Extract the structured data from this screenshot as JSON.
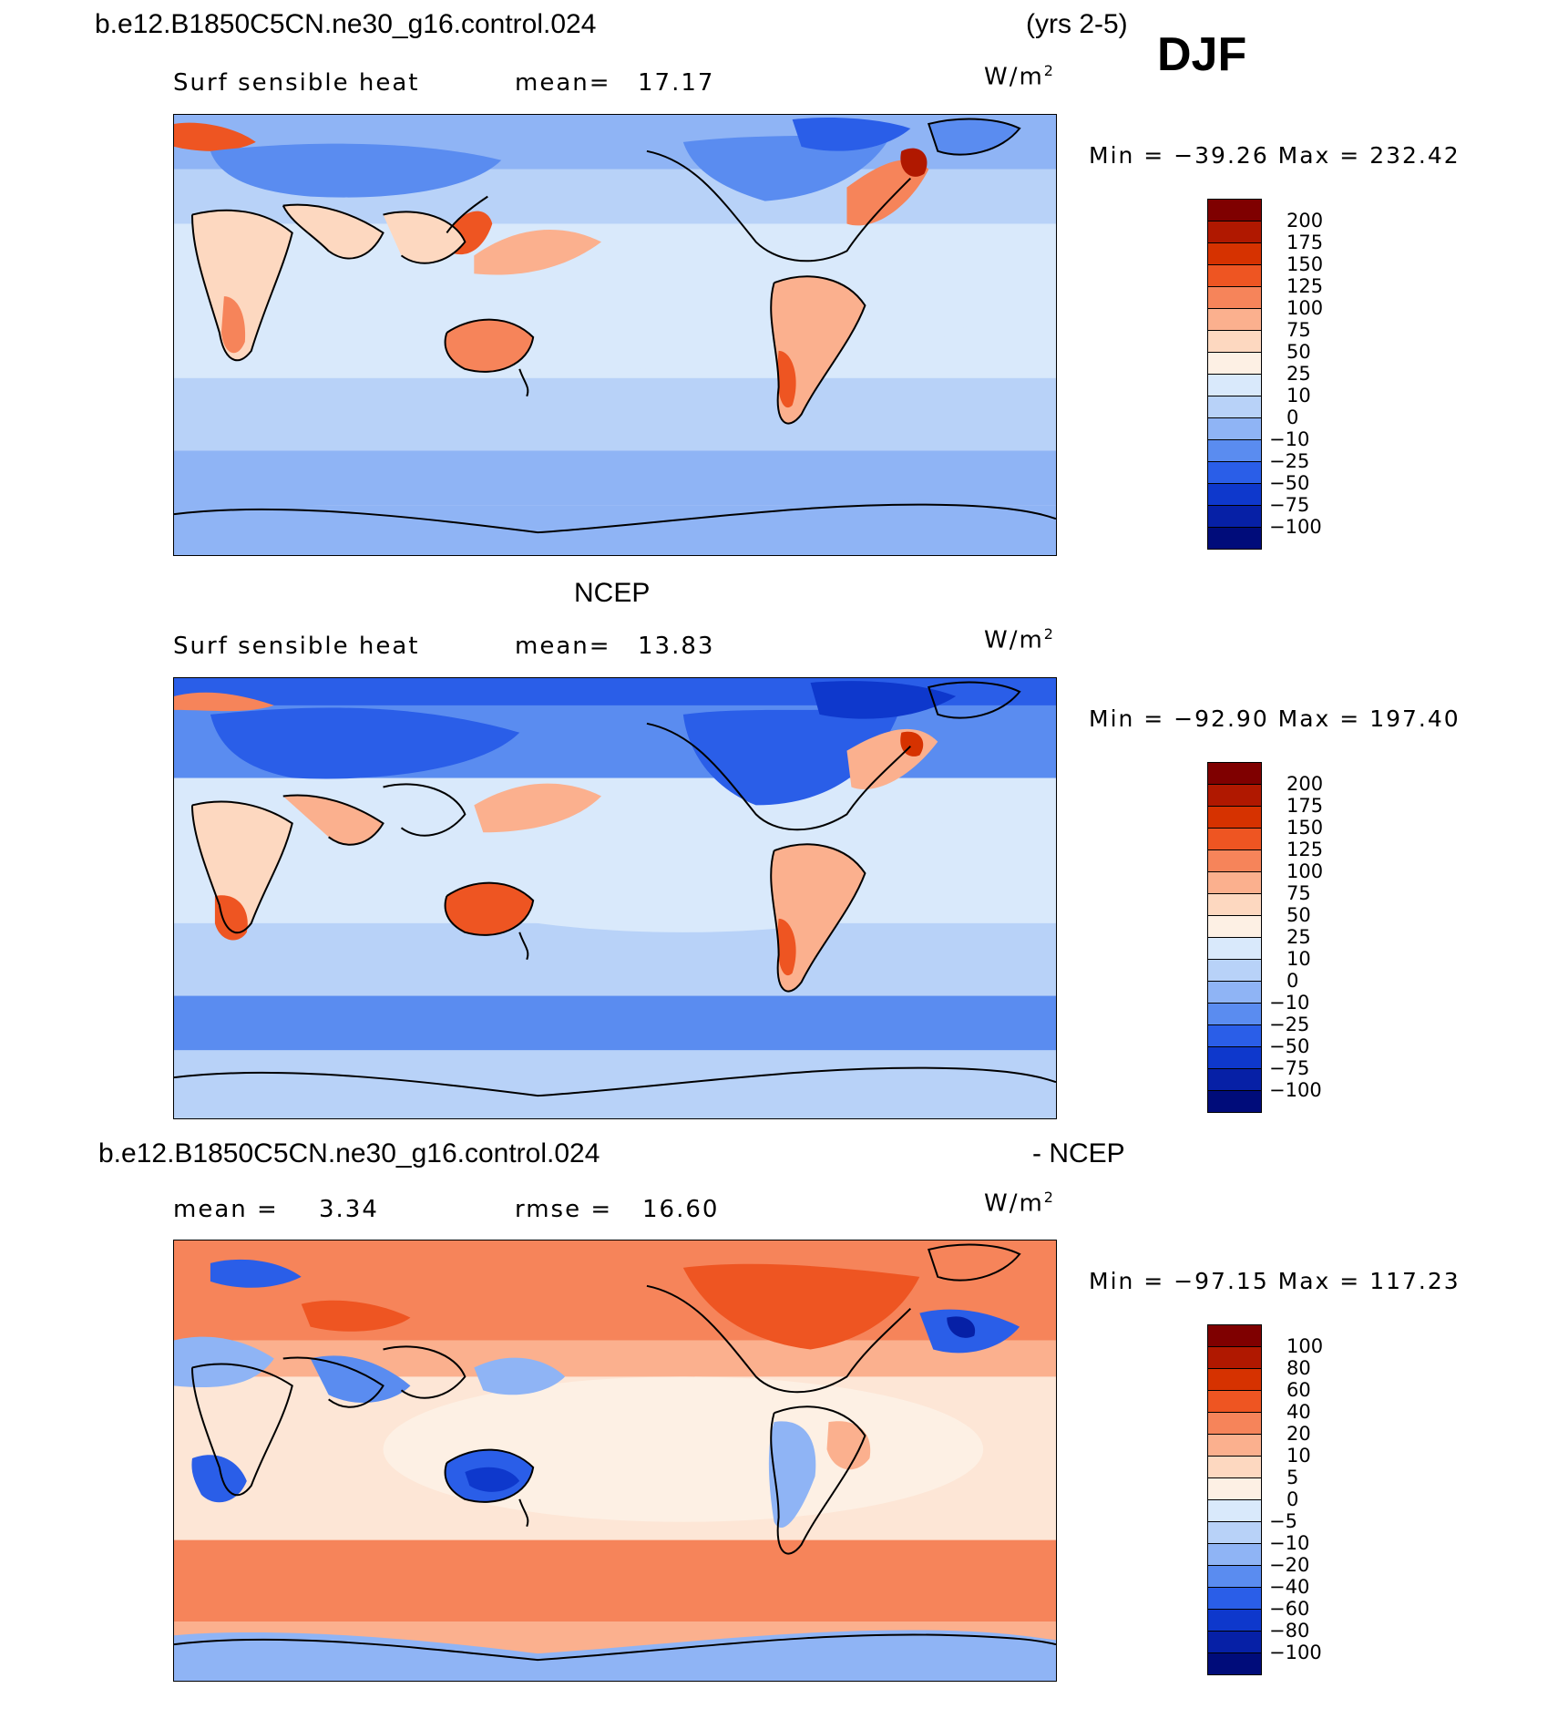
{
  "figure": {
    "case_title": "b.e12.B1850C5CN.ne30_g16.control.024",
    "years": "(yrs 2-5)",
    "season": "DJF"
  },
  "panels": [
    {
      "id": "model",
      "header": "",
      "left_label": "Surf sensible heat",
      "mean_label": "mean=",
      "mean_value": "17.17",
      "units_base": "W/m",
      "units_exp": "2",
      "minmax": "Min = −39.26 Max = 232.42",
      "colorbar_levels": [
        "200",
        "175",
        "150",
        "125",
        "100",
        "75",
        "50",
        "25",
        "10",
        "0",
        "−10",
        "−25",
        "−50",
        "−75",
        "−100"
      ]
    },
    {
      "id": "ncep",
      "header": "NCEP",
      "left_label": "Surf sensible heat",
      "mean_label": "mean=",
      "mean_value": "13.83",
      "units_base": "W/m",
      "units_exp": "2",
      "minmax": "Min = −92.90 Max = 197.40",
      "colorbar_levels": [
        "200",
        "175",
        "150",
        "125",
        "100",
        "75",
        "50",
        "25",
        "10",
        "0",
        "−10",
        "−25",
        "−50",
        "−75",
        "−100"
      ]
    },
    {
      "id": "diff",
      "header_left": "b.e12.B1850C5CN.ne30_g16.control.024",
      "header_right": "- NCEP",
      "left_label": "mean =",
      "left_value": "3.34",
      "mean_label": "rmse =",
      "mean_value": "16.60",
      "units_base": "W/m",
      "units_exp": "2",
      "minmax": "Min = −97.15 Max = 117.23",
      "colorbar_levels": [
        "100",
        "80",
        "60",
        "40",
        "20",
        "10",
        "5",
        "0",
        "−5",
        "−10",
        "−20",
        "−40",
        "−60",
        "−80",
        "−100"
      ]
    }
  ],
  "palette": [
    "#7f0000",
    "#b01800",
    "#d63200",
    "#ee5522",
    "#f6845a",
    "#fbb08e",
    "#fdd8c0",
    "#fdf0e4",
    "#d9e9fb",
    "#b8d2f8",
    "#8fb4f5",
    "#5a8cf0",
    "#2a5ee8",
    "#0e38cc",
    "#0620a6",
    "#000c7a"
  ],
  "colors": {
    "ocean_model": "#cfe4fb",
    "ocean_diff": "#fde6d6",
    "coast": "#000000"
  }
}
